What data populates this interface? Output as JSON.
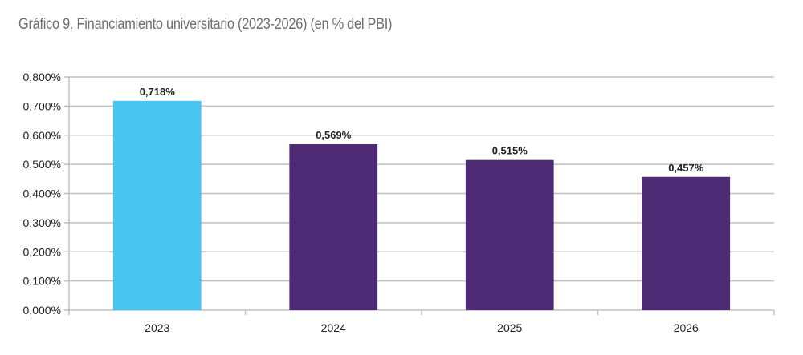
{
  "title": "Gráfico 9. Financiamiento universitario (2023-2026) (en % del PBI)",
  "chart_data": {
    "type": "bar",
    "title": "Gráfico 9. Financiamiento universitario (2023-2026) (en % del PBI)",
    "xlabel": "",
    "ylabel": "",
    "categories": [
      "2023",
      "2024",
      "2025",
      "2026"
    ],
    "values": [
      0.718,
      0.569,
      0.515,
      0.457
    ],
    "data_labels": [
      "0,718%",
      "0,569%",
      "0,515%",
      "0,457%"
    ],
    "bar_colors": [
      "#48c5f1",
      "#4f2a74",
      "#4f2a74",
      "#4f2a74"
    ],
    "ylim": [
      0,
      0.8
    ],
    "yticks": [
      0,
      0.1,
      0.2,
      0.3,
      0.4,
      0.5,
      0.6,
      0.7,
      0.8
    ],
    "ytick_labels": [
      "0,000%",
      "0,100%",
      "0,200%",
      "0,300%",
      "0,400%",
      "0,500%",
      "0,600%",
      "0,700%",
      "0,800%"
    ],
    "grid": true,
    "legend": "none",
    "gridline_color": "#c0c0c0"
  }
}
